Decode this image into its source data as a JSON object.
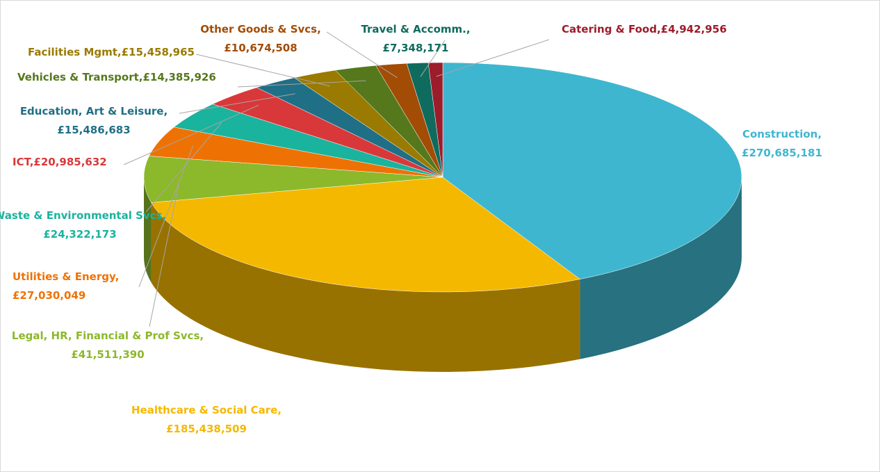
{
  "chart_data": {
    "type": "pie3d",
    "separator": ",",
    "categories": [
      "Construction",
      "Healthcare & Social Care",
      "Legal, HR, Financial & Prof Svcs",
      "Utilities & Energy",
      "Waste & Environmental Svcs",
      "ICT",
      "Education, Art & Leisure",
      "Facilities Mgmt",
      "Vehicles & Transport",
      "Other Goods & Svcs",
      "Travel & Accomm.",
      "Catering & Food"
    ],
    "values": [
      270685181,
      185438509,
      41511390,
      27030049,
      24322173,
      20985632,
      15486683,
      15458965,
      14385926,
      10674508,
      7348171,
      4942956
    ],
    "value_labels": [
      "£270,685,181",
      "£185,438,509",
      "£41,511,390",
      "£27,030,049",
      "£24,322,173",
      "£20,985,632",
      "£15,486,683",
      "£15,458,965",
      "£14,385,926",
      "£10,674,508",
      "£7,348,171",
      "£4,942,956"
    ],
    "colors": [
      "#3fb6cf",
      "#f5b800",
      "#8cb82b",
      "#ee7203",
      "#1ab39e",
      "#d9383a",
      "#1f6f86",
      "#9a7a00",
      "#55781c",
      "#a24c06",
      "#0f6b5e",
      "#9c1c2a"
    ]
  }
}
